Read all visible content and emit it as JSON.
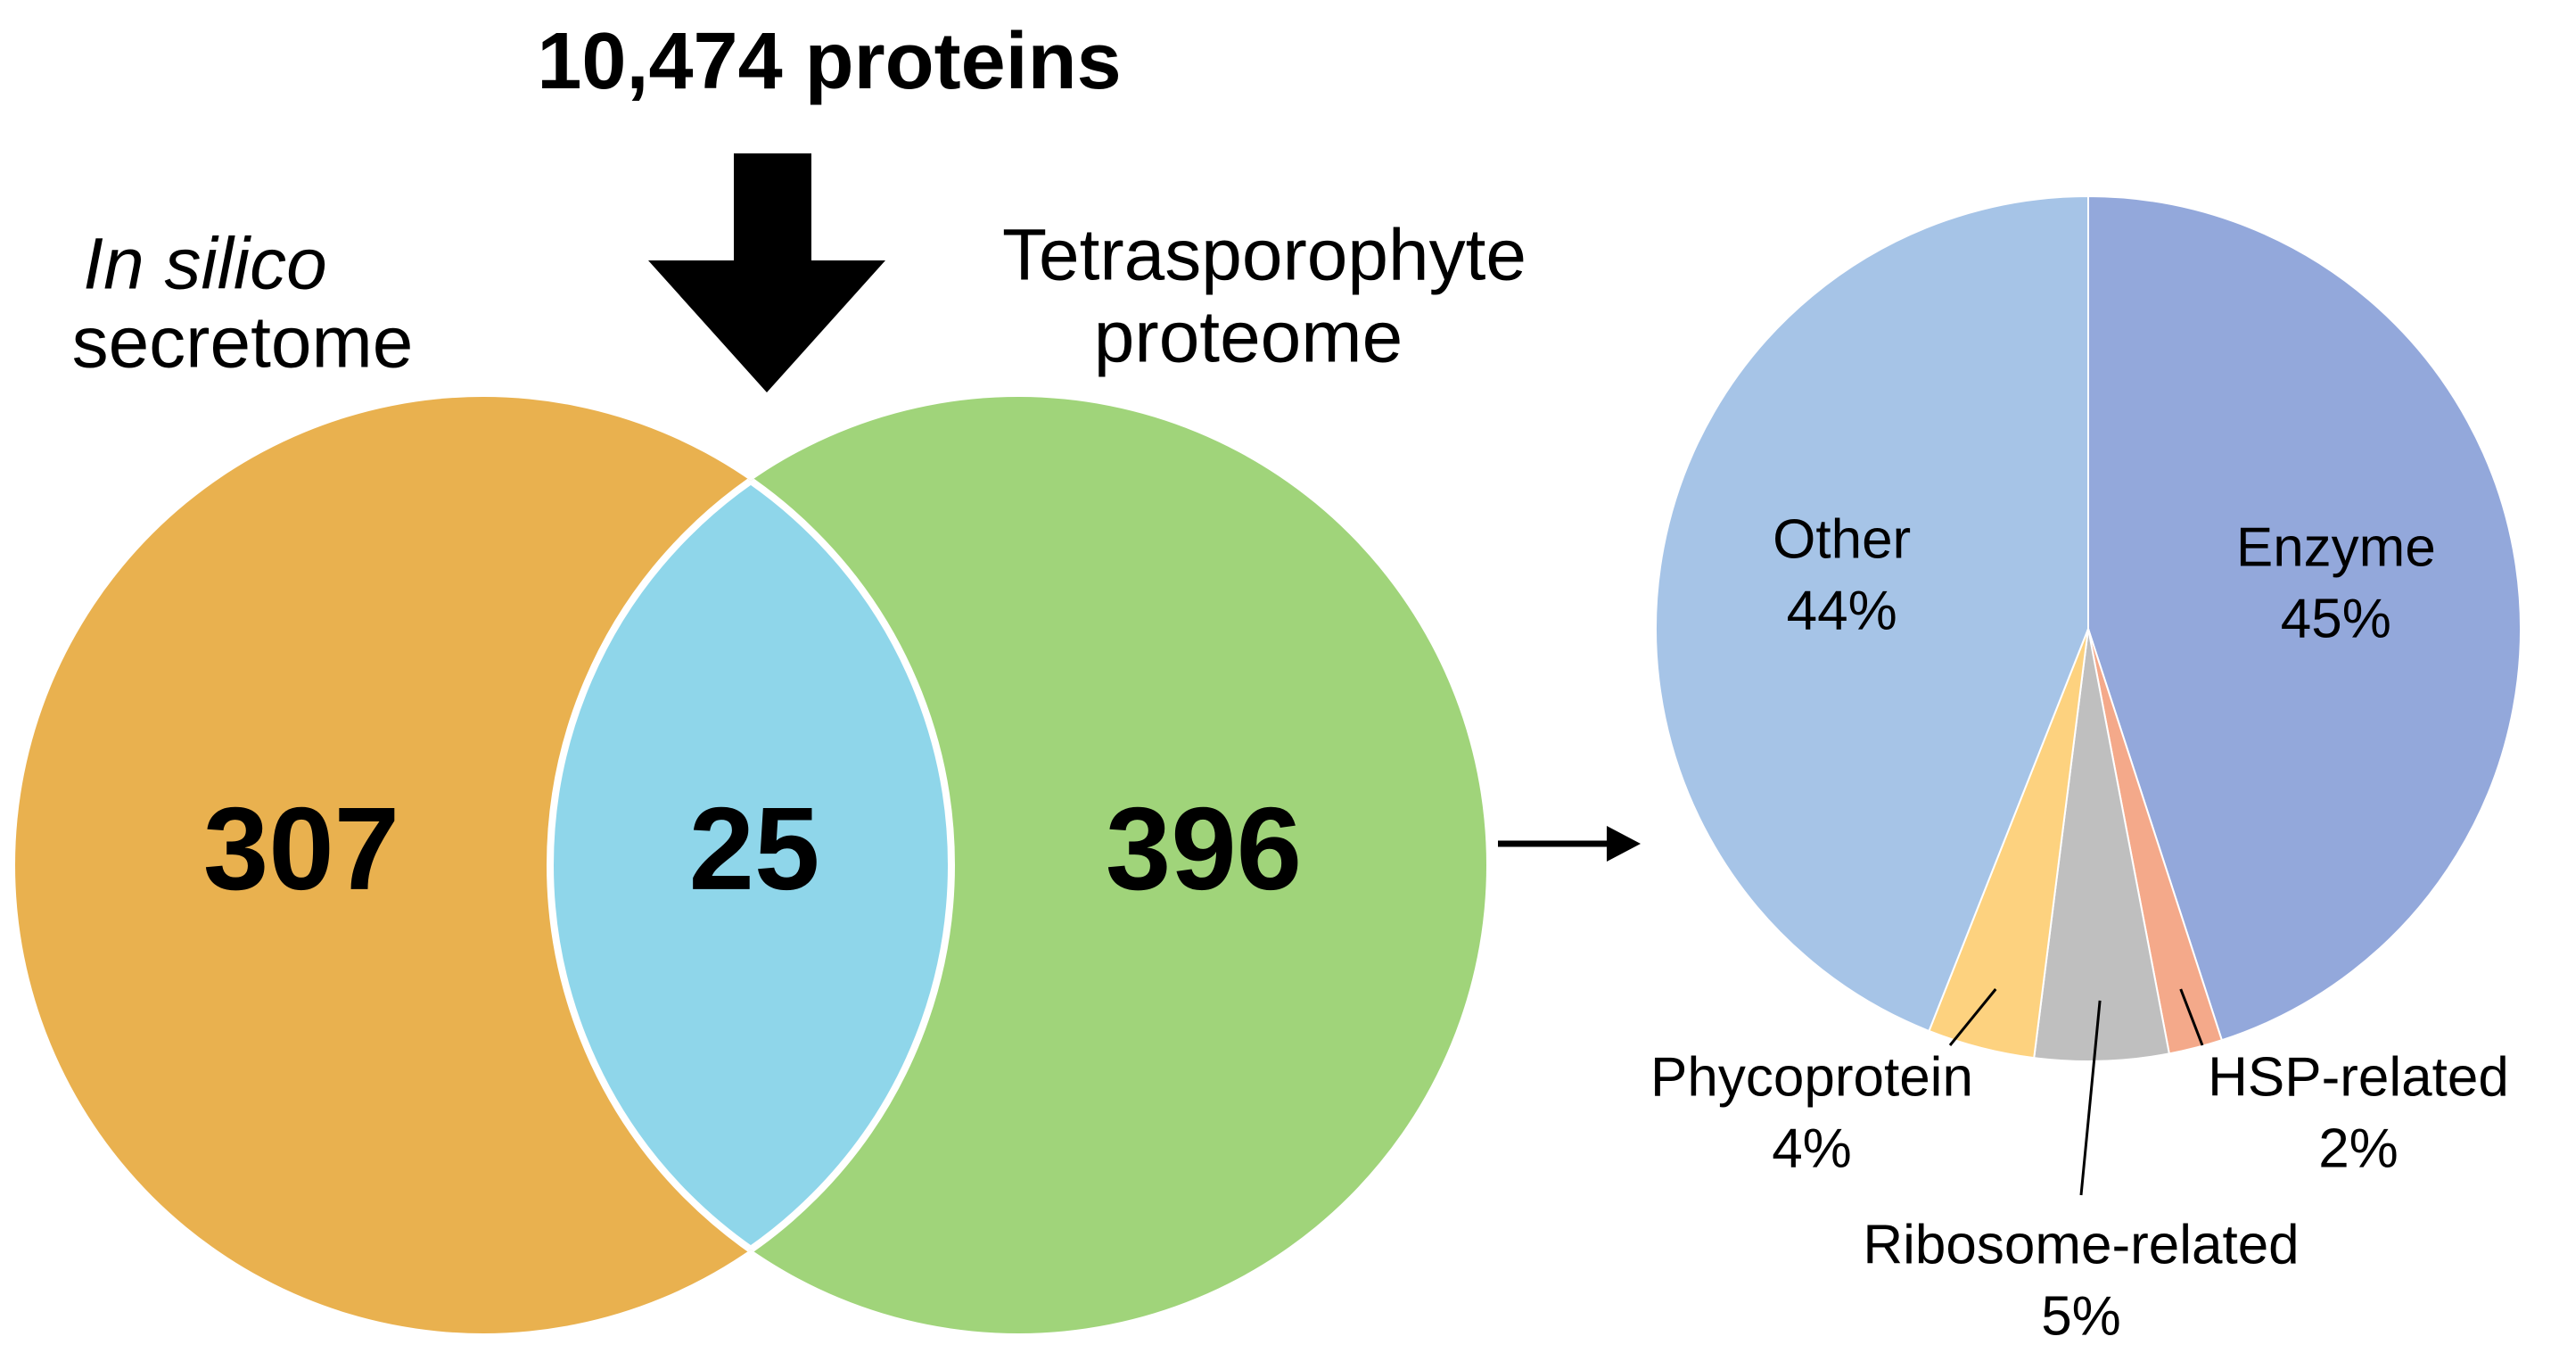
{
  "chart_data": [
    {
      "type": "venn",
      "title": "10,474 proteins",
      "sets": [
        {
          "label_lines": [
            "In silico",
            "secretome"
          ],
          "color": "#e9b14f",
          "only": 307
        },
        {
          "label_lines": [
            "Tetrasporophyte",
            "proteome"
          ],
          "color": "#a0d47a",
          "only": 396
        }
      ],
      "intersection": {
        "value": 25,
        "color": "#8fd6ea"
      }
    },
    {
      "type": "pie",
      "categories": [
        "Enzyme",
        "HSP-related",
        "Ribosome-related",
        "Phycoprotein",
        "Other"
      ],
      "values": [
        45,
        2,
        5,
        4,
        44
      ],
      "value_labels": [
        "45%",
        "2%",
        "5%",
        "4%",
        "44%"
      ],
      "colors": [
        "#93a8db",
        "#f4a98a",
        "#bfbfbf",
        "#fdd27f",
        "#a6c4e7"
      ]
    }
  ]
}
